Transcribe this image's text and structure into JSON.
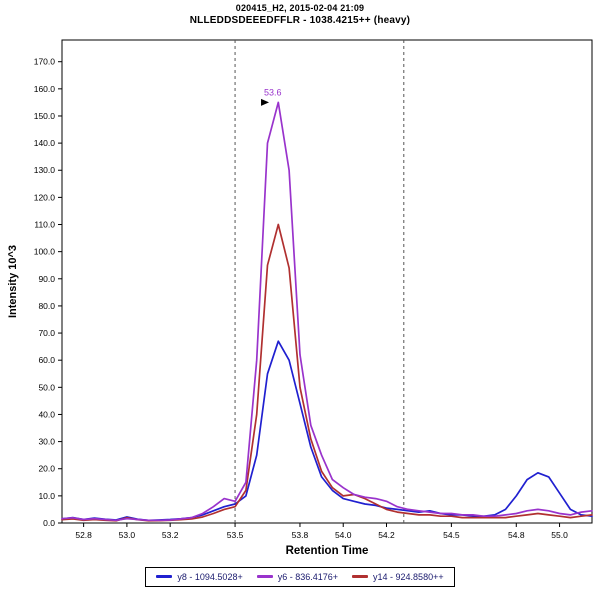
{
  "header": {
    "title_line1": "020415_H2, 2015-02-04 21:09",
    "title_line2": "NLLEDDSDEEEDFFLR - 1038.4215++ (heavy)"
  },
  "chart_data": {
    "type": "line",
    "title": "020415_H2, 2015-02-04 21:09",
    "subtitle": "NLLEDDSDEEEDFFLR - 1038.4215++ (heavy)",
    "xlabel": "Retention Time",
    "ylabel": "Intensity 10^3",
    "xlim": [
      52.7,
      55.15
    ],
    "ylim": [
      0,
      178
    ],
    "x_ticks": [
      52.8,
      53.0,
      53.2,
      53.5,
      53.8,
      54.0,
      54.2,
      54.5,
      54.8,
      55.0
    ],
    "y_ticks": [
      0,
      10,
      20,
      30,
      40,
      50,
      60,
      70,
      80,
      90,
      100,
      110,
      120,
      130,
      140,
      150,
      160,
      170
    ],
    "integration_boundaries": [
      53.5,
      54.28
    ],
    "annotation": {
      "label": "53.6",
      "x": 53.62,
      "y": 155
    },
    "legend_position": "bottom",
    "grid": false,
    "x": [
      52.7,
      52.75,
      52.8,
      52.85,
      52.9,
      52.95,
      53.0,
      53.05,
      53.1,
      53.15,
      53.2,
      53.25,
      53.3,
      53.35,
      53.4,
      53.45,
      53.5,
      53.55,
      53.6,
      53.65,
      53.7,
      53.75,
      53.8,
      53.85,
      53.9,
      53.95,
      54.0,
      54.05,
      54.1,
      54.15,
      54.2,
      54.25,
      54.3,
      54.35,
      54.4,
      54.45,
      54.5,
      54.55,
      54.6,
      54.65,
      54.7,
      54.75,
      54.8,
      54.85,
      54.9,
      54.95,
      55.0,
      55.05,
      55.1,
      55.15
    ],
    "series": [
      {
        "name": "y8",
        "label": "y8 - 1094.5028+",
        "color": "#2020d0",
        "values": [
          1.5,
          2.0,
          1.3,
          1.8,
          1.4,
          1.1,
          2.2,
          1.4,
          1.0,
          1.1,
          1.3,
          1.6,
          2.0,
          3.0,
          4.5,
          6.0,
          7.0,
          10,
          25,
          55,
          67,
          60,
          44,
          28,
          17,
          12,
          9,
          8,
          7,
          6.5,
          5.5,
          5,
          4.5,
          4,
          4.5,
          3.5,
          3,
          3,
          2.5,
          2.5,
          3,
          5,
          10,
          16,
          18.5,
          17,
          11,
          5,
          3,
          2.5
        ]
      },
      {
        "name": "y6",
        "label": "y6 - 836.4176+",
        "color": "#9933cc",
        "values": [
          1.6,
          1.9,
          1.3,
          1.6,
          1.3,
          1.0,
          1.6,
          1.3,
          1.0,
          1.0,
          1.1,
          1.5,
          2.0,
          3.5,
          6,
          9,
          8,
          15,
          60,
          140,
          155,
          130,
          62,
          36,
          25,
          16,
          13,
          10.5,
          9.5,
          9,
          8,
          6,
          5,
          4.5,
          4,
          3.5,
          3.5,
          3,
          3,
          2.5,
          2.5,
          3,
          3.5,
          4.5,
          5,
          4.5,
          3.5,
          3,
          4,
          4.5
        ]
      },
      {
        "name": "y14",
        "label": "y14 - 924.8580++",
        "color": "#b03030",
        "values": [
          1.2,
          1.5,
          1.0,
          1.3,
          1.0,
          0.8,
          1.9,
          1.2,
          0.8,
          0.9,
          1.0,
          1.2,
          1.5,
          2.2,
          3.5,
          5,
          6,
          12,
          40,
          95,
          110,
          94,
          50,
          31,
          19,
          13,
          10,
          10.5,
          9,
          7,
          5,
          4,
          3.5,
          3,
          3,
          2.5,
          2.5,
          2,
          2,
          2,
          2,
          2,
          2.5,
          3,
          3.5,
          3,
          2.5,
          2,
          2.5,
          3
        ]
      }
    ]
  }
}
